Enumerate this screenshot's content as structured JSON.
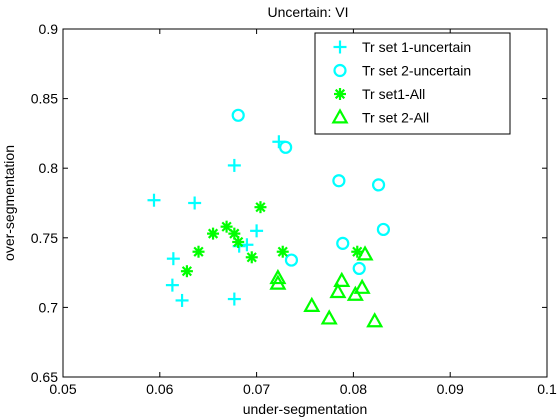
{
  "chart_data": {
    "type": "scatter",
    "title": "Uncertain: VI",
    "xlabel": "under-segmentation",
    "ylabel": "over-segmentation",
    "xlim": [
      0.05,
      0.1
    ],
    "ylim": [
      0.65,
      0.9
    ],
    "x_ticks": [
      0.05,
      0.06,
      0.07,
      0.08,
      0.09,
      0.1
    ],
    "x_tick_labels": [
      "0.05",
      "0.06",
      "0.07",
      "0.08",
      "0.09",
      "0.1"
    ],
    "y_ticks": [
      0.65,
      0.7,
      0.75,
      0.8,
      0.85,
      0.9
    ],
    "y_tick_labels": [
      "0.65",
      "0.7",
      "0.75",
      "0.8",
      "0.85",
      "0.9"
    ],
    "grid": false,
    "legend_position": "top-right",
    "series": [
      {
        "name": "Tr set 1-uncertain",
        "marker": "plus",
        "color": "#00ffff",
        "points": [
          [
            0.0594,
            0.777
          ],
          [
            0.0636,
            0.775
          ],
          [
            0.0614,
            0.735
          ],
          [
            0.0613,
            0.716
          ],
          [
            0.0623,
            0.705
          ],
          [
            0.0677,
            0.802
          ],
          [
            0.0723,
            0.819
          ],
          [
            0.0677,
            0.706
          ],
          [
            0.07,
            0.755
          ],
          [
            0.069,
            0.745
          ],
          [
            0.0682,
            0.744
          ]
        ]
      },
      {
        "name": "Tr set 2-uncertain",
        "marker": "circle",
        "color": "#00ffff",
        "points": [
          [
            0.0681,
            0.838
          ],
          [
            0.073,
            0.815
          ],
          [
            0.0785,
            0.791
          ],
          [
            0.0826,
            0.788
          ],
          [
            0.0789,
            0.746
          ],
          [
            0.0831,
            0.756
          ],
          [
            0.0736,
            0.734
          ],
          [
            0.0806,
            0.728
          ]
        ]
      },
      {
        "name": "Tr set1-All",
        "marker": "star",
        "color": "#00ff00",
        "points": [
          [
            0.0628,
            0.726
          ],
          [
            0.064,
            0.74
          ],
          [
            0.0655,
            0.753
          ],
          [
            0.0669,
            0.758
          ],
          [
            0.0677,
            0.753
          ],
          [
            0.0681,
            0.747
          ],
          [
            0.0695,
            0.736
          ],
          [
            0.0704,
            0.772
          ],
          [
            0.0727,
            0.74
          ],
          [
            0.0804,
            0.74
          ]
        ]
      },
      {
        "name": "Tr set 2-All",
        "marker": "triangle",
        "color": "#00ff00",
        "points": [
          [
            0.0722,
            0.721
          ],
          [
            0.0722,
            0.717
          ],
          [
            0.0757,
            0.701
          ],
          [
            0.0775,
            0.692
          ],
          [
            0.0784,
            0.711
          ],
          [
            0.0788,
            0.719
          ],
          [
            0.0802,
            0.709
          ],
          [
            0.0809,
            0.714
          ],
          [
            0.0812,
            0.738
          ],
          [
            0.0822,
            0.69
          ]
        ]
      }
    ]
  }
}
